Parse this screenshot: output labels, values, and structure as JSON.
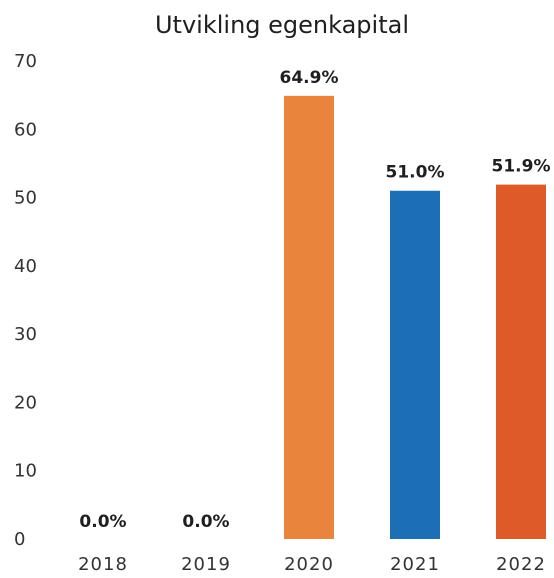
{
  "chart_data": {
    "type": "bar",
    "title": "Utvikling egenkapital",
    "categories": [
      "2018",
      "2019",
      "2020",
      "2021",
      "2022"
    ],
    "values": [
      0.0,
      0.0,
      64.9,
      51.0,
      51.9
    ],
    "data_labels": [
      "0.0%",
      "0.0%",
      "64.9%",
      "51.0%",
      "51.9%"
    ],
    "bar_colors": [
      "#e8843c",
      "#e8843c",
      "#e8843c",
      "#1c6fb5",
      "#de5a28"
    ],
    "yticks": [
      0,
      10,
      20,
      30,
      40,
      50,
      60,
      70
    ],
    "ylim": [
      0,
      70
    ],
    "grid": false,
    "legend": "none"
  }
}
